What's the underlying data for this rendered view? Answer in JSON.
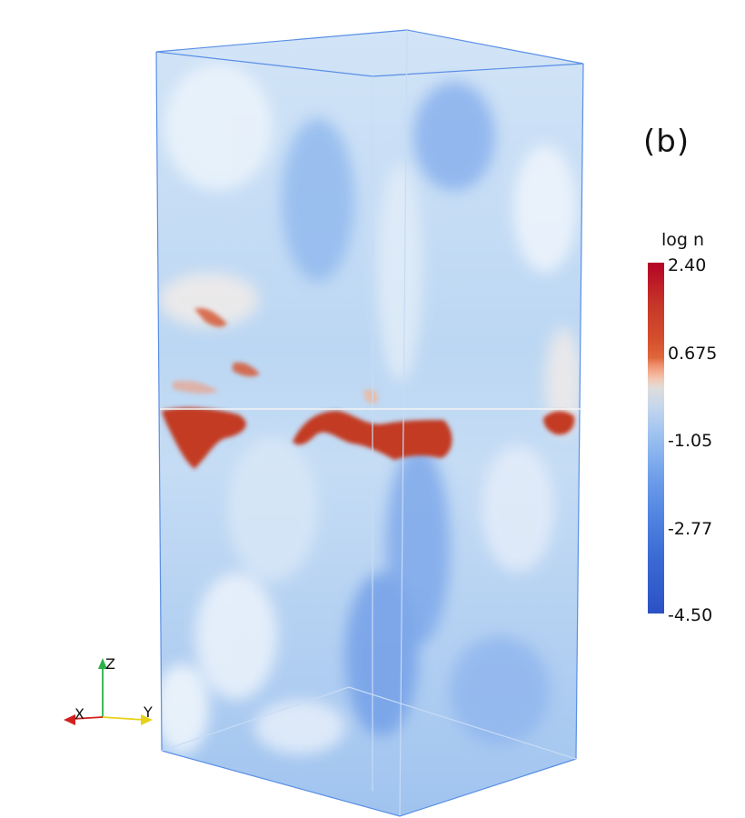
{
  "panel_label": "(b)",
  "colorbar": {
    "title": "log n",
    "ticks": [
      "2.40",
      "0.675",
      "-1.05",
      "-2.77",
      "-4.50"
    ],
    "max": 2.4,
    "min": -4.5,
    "colors": {
      "high": "#b40426",
      "mid": "#dddddd",
      "low": "#2b51c5"
    }
  },
  "orientation_axes": {
    "z_label": "Z",
    "x_label": "X",
    "y_label": "Y",
    "colors": {
      "z": "#2bb34a",
      "x": "#d21f1f",
      "y": "#e6d21a"
    }
  },
  "volume_render": {
    "box_edge_color": "#5a8fe6",
    "background_field": "light-blue turbulent cloud",
    "feature_color": "#c23a22"
  }
}
